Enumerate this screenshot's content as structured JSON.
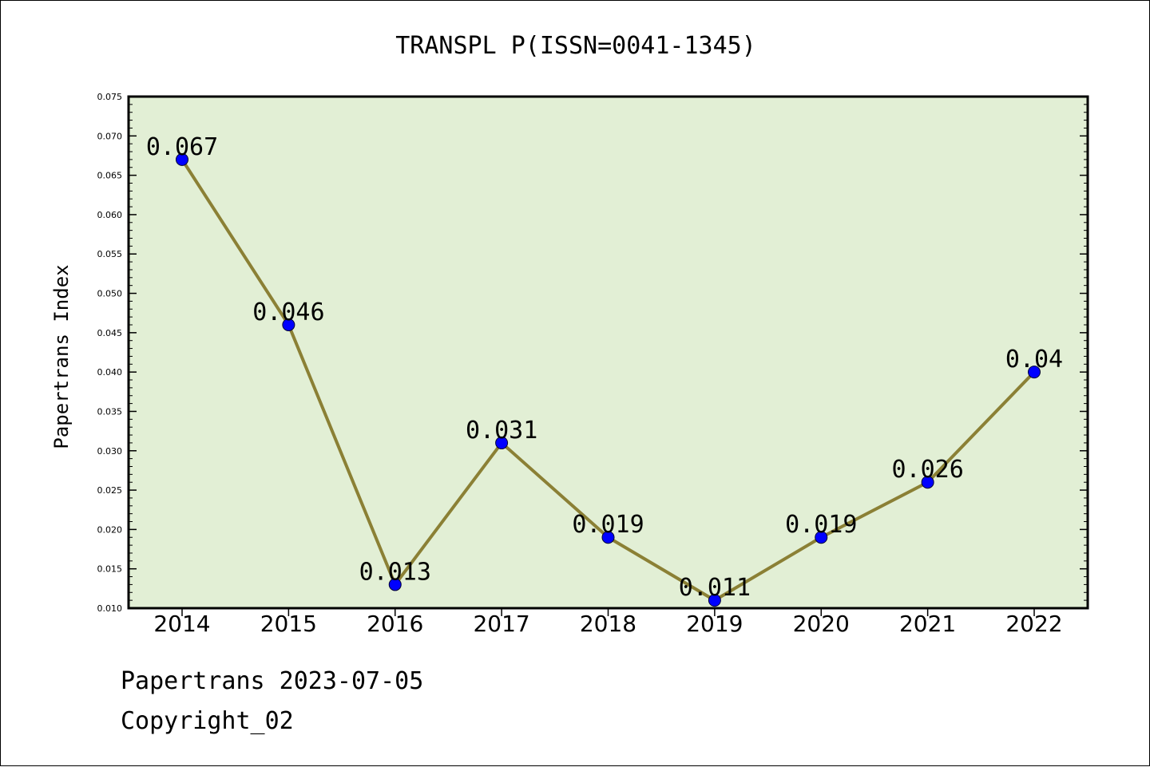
{
  "chart_data": {
    "type": "line",
    "title": "TRANSPL P(ISSN=0041-1345)",
    "xlabel": "",
    "ylabel": "Papertrans Index",
    "categories": [
      "2014",
      "2015",
      "2016",
      "2017",
      "2018",
      "2019",
      "2020",
      "2021",
      "2022"
    ],
    "values": [
      0.067,
      0.046,
      0.013,
      0.031,
      0.019,
      0.011,
      0.019,
      0.026,
      0.04
    ],
    "data_labels": [
      "0.067",
      "0.046",
      "0.013",
      "0.031",
      "0.019",
      "0.011",
      "0.019",
      "0.026",
      "0.04"
    ],
    "ylim": [
      0.01,
      0.075
    ],
    "yticks": [
      "0.010",
      "0.015",
      "0.020",
      "0.025",
      "0.030",
      "0.035",
      "0.040",
      "0.045",
      "0.050",
      "0.055",
      "0.060",
      "0.065",
      "0.070",
      "0.075"
    ],
    "grid": false,
    "colors": {
      "plot_background": "#e2efd5",
      "line": "#8b8035",
      "marker": "#0000ff"
    }
  },
  "footer": {
    "date_line": "Papertrans 2023-07-05",
    "copyright": "Copyright_02"
  }
}
